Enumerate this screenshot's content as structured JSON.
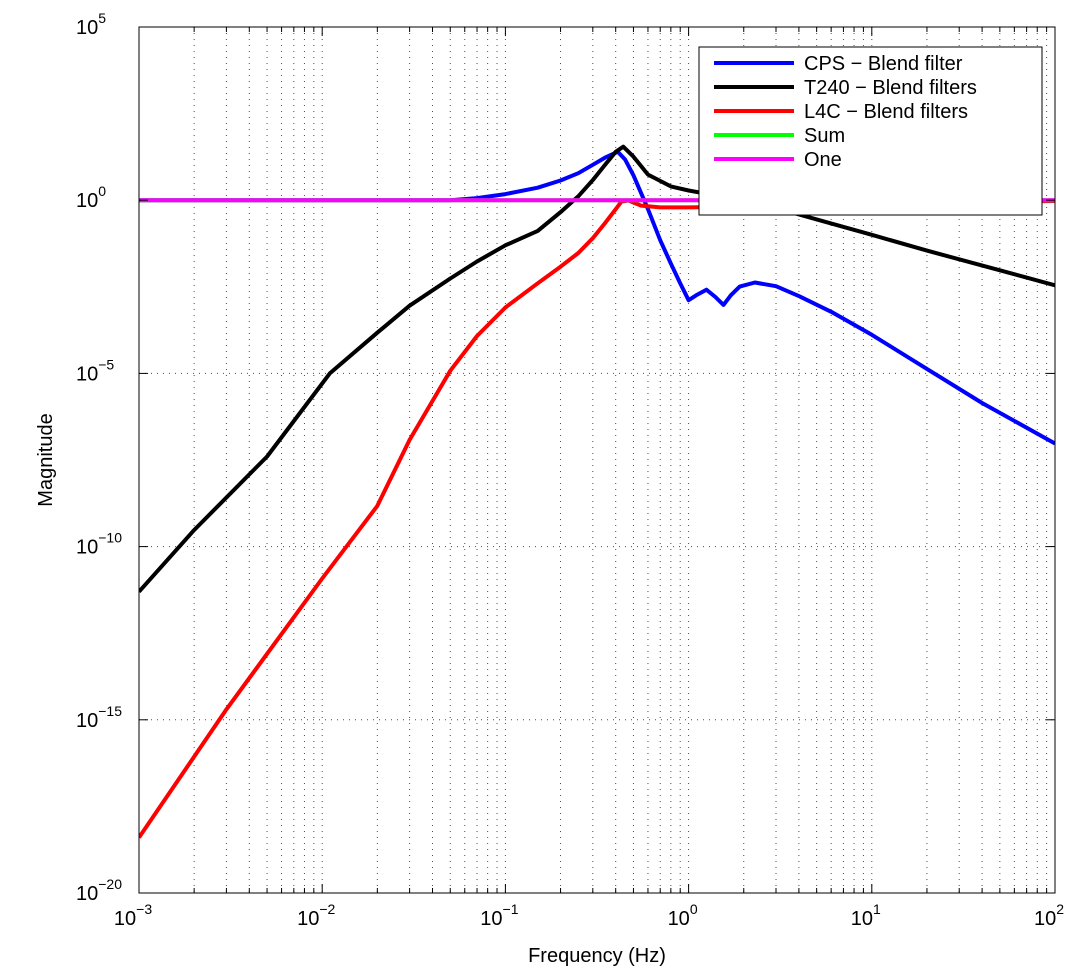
{
  "chart_data": {
    "type": "line",
    "title": "",
    "xlabel": "Frequency (Hz)",
    "ylabel": "Magnitude",
    "xscale": "log",
    "yscale": "log",
    "xlim": [
      0.001,
      100
    ],
    "ylim": [
      1e-20,
      100000
    ],
    "grid": "dotted, major and minor",
    "legend_position": "top-right",
    "x_ticks": [
      {
        "base": "10",
        "exp": "−3"
      },
      {
        "base": "10",
        "exp": "−2"
      },
      {
        "base": "10",
        "exp": "−1"
      },
      {
        "base": "10",
        "exp": "0"
      },
      {
        "base": "10",
        "exp": "1"
      },
      {
        "base": "10",
        "exp": "2"
      }
    ],
    "y_ticks": [
      {
        "base": "10",
        "exp": "−20"
      },
      {
        "base": "10",
        "exp": "−15"
      },
      {
        "base": "10",
        "exp": "−10"
      },
      {
        "base": "10",
        "exp": "−5"
      },
      {
        "base": "10",
        "exp": "0"
      },
      {
        "base": "10",
        "exp": "5"
      }
    ],
    "series": [
      {
        "name": "CPS − Blend filter",
        "color": "#0000ff",
        "x": [
          0.001,
          0.01,
          0.03,
          0.05,
          0.07,
          0.1,
          0.15,
          0.2,
          0.25,
          0.3,
          0.35,
          0.41,
          0.45,
          0.5,
          0.6,
          0.7,
          0.8,
          0.9,
          1.0,
          1.1,
          1.25,
          1.4,
          1.55,
          1.7,
          1.9,
          2.3,
          3.0,
          4.0,
          6.0,
          10.0,
          20.0,
          40.0,
          100.0
        ],
        "y": [
          1,
          1,
          1,
          1,
          1.15,
          1.5,
          2.3,
          3.7,
          6.0,
          10.5,
          17,
          25,
          15,
          5.2,
          0.55,
          0.07,
          0.015,
          0.004,
          0.0013,
          0.0018,
          0.0026,
          0.0016,
          0.00095,
          0.0018,
          0.0032,
          0.0042,
          0.0033,
          0.0017,
          0.0006,
          0.00013,
          1.35e-05,
          1.4e-06,
          9.5e-08
        ]
      },
      {
        "name": "T240 − Blend filters",
        "color": "#000000",
        "x": [
          0.001,
          0.002,
          0.005,
          0.011,
          0.02,
          0.03,
          0.05,
          0.07,
          0.1,
          0.15,
          0.2,
          0.25,
          0.3,
          0.35,
          0.4,
          0.44,
          0.5,
          0.6,
          0.8,
          1.0,
          1.5,
          2.0,
          3.0,
          5.0,
          10.0,
          20.0,
          50.0,
          100.0
        ],
        "y": [
          5e-12,
          3e-10,
          4e-08,
          1e-05,
          0.00015,
          0.0009,
          0.0055,
          0.017,
          0.05,
          0.13,
          0.45,
          1.3,
          3.8,
          10.5,
          25,
          35,
          18,
          5.5,
          2.5,
          1.9,
          1.3,
          0.9,
          0.6,
          0.28,
          0.1,
          0.035,
          0.0095,
          0.0035
        ]
      },
      {
        "name": "L4C − Blend filters",
        "color": "#ff0000",
        "x": [
          0.001,
          0.003,
          0.01,
          0.02,
          0.03,
          0.05,
          0.07,
          0.1,
          0.15,
          0.2,
          0.25,
          0.3,
          0.35,
          0.4,
          0.43,
          0.47,
          0.55,
          0.7,
          1.0,
          2.0,
          5.0,
          10.0,
          100.0
        ],
        "y": [
          4e-19,
          2e-15,
          1.2e-11,
          1.5e-09,
          1.2e-07,
          1.2e-05,
          0.00012,
          0.0008,
          0.004,
          0.012,
          0.03,
          0.08,
          0.22,
          0.55,
          0.92,
          0.98,
          0.7,
          0.62,
          0.62,
          0.65,
          0.72,
          0.8,
          0.95
        ]
      },
      {
        "name": "Sum",
        "color": "#00ff00",
        "x": [
          0.001,
          100.0
        ],
        "y": [
          1,
          1
        ]
      },
      {
        "name": "One",
        "color": "#ff00ff",
        "x": [
          0.001,
          100.0
        ],
        "y": [
          1,
          1
        ]
      }
    ]
  }
}
